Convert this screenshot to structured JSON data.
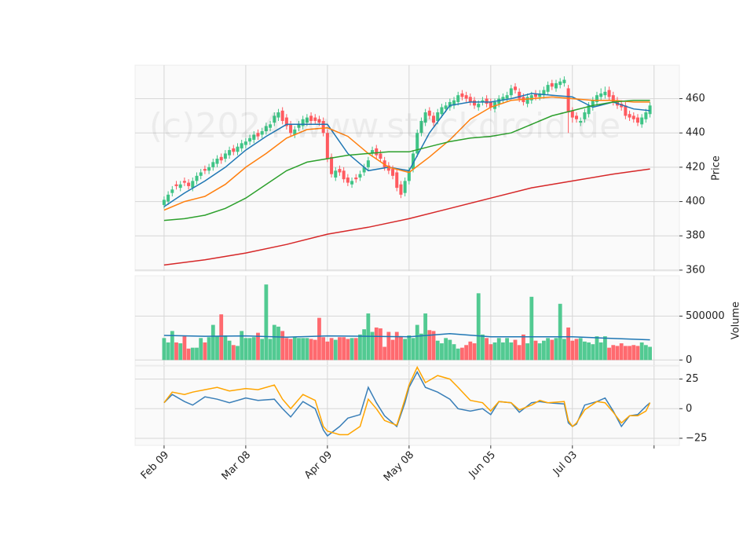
{
  "chart_data": [
    {
      "type": "candlestick",
      "ylabel": "Price",
      "watermark": "(c)2024 www.stockdroid.de",
      "grid": true,
      "ylim": [
        359.5,
        479.5
      ],
      "yticks": [
        360,
        380,
        400,
        420,
        440,
        460
      ],
      "up_color": "#3fc486",
      "down_color": "#ff5a5f",
      "open": [
        398,
        400,
        405,
        410,
        408,
        412,
        411,
        408,
        412,
        415,
        419,
        418,
        420,
        422,
        426,
        425,
        427,
        431,
        429,
        431,
        433,
        435,
        436,
        440,
        439,
        441,
        443,
        446,
        449,
        453,
        449,
        445,
        439,
        443,
        444,
        446,
        450,
        449,
        448,
        447,
        440,
        426,
        414,
        419,
        418,
        414,
        410,
        414,
        414,
        417,
        420,
        428,
        431,
        428,
        424,
        421,
        419,
        417,
        410,
        405,
        412,
        419,
        428,
        440,
        446,
        453,
        450,
        447,
        451,
        454,
        455,
        456,
        458,
        463,
        462,
        461,
        459,
        455,
        458,
        460,
        458,
        454,
        457,
        459,
        460,
        462,
        467,
        464,
        461,
        457,
        459,
        463,
        461,
        462,
        464,
        469,
        466,
        468,
        469,
        466,
        453,
        450,
        446,
        448,
        451,
        455,
        458,
        461,
        462,
        465,
        462,
        459,
        457,
        456,
        451,
        450,
        449,
        445,
        448,
        451
      ],
      "high": [
        403,
        406,
        409,
        412,
        412,
        414,
        413,
        414,
        417,
        419,
        421,
        422,
        425,
        427,
        428,
        430,
        432,
        433,
        434,
        436,
        437,
        439,
        441,
        442,
        443,
        446,
        447,
        452,
        454,
        455,
        451,
        447,
        444,
        447,
        450,
        451,
        452,
        451,
        450,
        449,
        442,
        428,
        420,
        421,
        420,
        416,
        414,
        416,
        418,
        422,
        426,
        432,
        433,
        430,
        426,
        423,
        421,
        419,
        412,
        414,
        420,
        430,
        442,
        449,
        454,
        455,
        452,
        454,
        457,
        458,
        460,
        461,
        464,
        465,
        464,
        463,
        461,
        459,
        461,
        462,
        460,
        460,
        462,
        463,
        464,
        468,
        469,
        466,
        463,
        463,
        464,
        465,
        465,
        467,
        470,
        471,
        471,
        472,
        473,
        468,
        455,
        452,
        449,
        454,
        458,
        461,
        464,
        466,
        467,
        467,
        464,
        461,
        459,
        458,
        453,
        452,
        451,
        451,
        454,
        458
      ],
      "low": [
        396,
        398,
        403,
        407,
        406,
        409,
        407,
        406,
        410,
        413,
        416,
        416,
        418,
        420,
        422,
        423,
        425,
        427,
        427,
        429,
        431,
        433,
        434,
        436,
        437,
        439,
        441,
        444,
        447,
        445,
        442,
        438,
        437,
        441,
        442,
        444,
        445,
        445,
        444,
        438,
        423,
        414,
        412,
        415,
        411,
        409,
        408,
        411,
        412,
        415,
        418,
        426,
        425,
        423,
        418,
        416,
        413,
        406,
        402,
        403,
        410,
        417,
        426,
        438,
        444,
        448,
        444,
        445,
        449,
        452,
        453,
        454,
        456,
        459,
        458,
        456,
        454,
        453,
        456,
        455,
        453,
        452,
        455,
        457,
        458,
        460,
        463,
        458,
        456,
        455,
        457,
        459,
        459,
        460,
        462,
        465,
        464,
        466,
        467,
        440,
        446,
        446,
        444,
        446,
        449,
        453,
        456,
        459,
        460,
        459,
        456,
        454,
        453,
        448,
        447,
        446,
        444,
        443,
        446,
        449
      ],
      "close": [
        401,
        404,
        407,
        409,
        410,
        411,
        409,
        412,
        415,
        417,
        418,
        420,
        423,
        425,
        424,
        428,
        430,
        429,
        432,
        434,
        435,
        437,
        439,
        438,
        441,
        444,
        445,
        450,
        452,
        447,
        444,
        440,
        442,
        445,
        448,
        449,
        447,
        447,
        446,
        440,
        425,
        416,
        418,
        417,
        413,
        411,
        412,
        413,
        416,
        420,
        424,
        430,
        427,
        425,
        420,
        418,
        415,
        408,
        404,
        412,
        418,
        428,
        440,
        447,
        452,
        450,
        446,
        452,
        455,
        456,
        458,
        459,
        462,
        461,
        460,
        458,
        456,
        457,
        459,
        457,
        455,
        458,
        460,
        461,
        462,
        466,
        465,
        460,
        458,
        461,
        462,
        461,
        463,
        465,
        468,
        467,
        469,
        470,
        471,
        452,
        449,
        448,
        447,
        452,
        456,
        459,
        462,
        463,
        464,
        461,
        458,
        456,
        455,
        450,
        449,
        448,
        446,
        449,
        452,
        456
      ],
      "series": [
        {
          "color": "#1f77b4",
          "x": [
            0,
            5,
            10,
            15,
            20,
            25,
            30,
            35,
            40,
            45,
            50,
            55,
            60,
            65,
            70,
            75,
            80,
            85,
            90,
            95,
            100,
            105,
            110,
            115,
            119
          ],
          "values": [
            397,
            405,
            412,
            420,
            430,
            438,
            445,
            445,
            445,
            428,
            418,
            420,
            418,
            440,
            456,
            458,
            458,
            460,
            463,
            462,
            461,
            455,
            458,
            454,
            453
          ]
        },
        {
          "color": "#ff7f0e",
          "x": [
            0,
            5,
            10,
            15,
            20,
            25,
            30,
            35,
            40,
            45,
            50,
            55,
            60,
            65,
            70,
            75,
            80,
            85,
            90,
            95,
            100,
            105,
            110,
            115,
            119
          ],
          "values": [
            395,
            400,
            403,
            410,
            420,
            428,
            437,
            442,
            443,
            438,
            428,
            420,
            417,
            426,
            436,
            448,
            455,
            459,
            460,
            461,
            460,
            459,
            459,
            458,
            458
          ]
        },
        {
          "color": "#2ca02c",
          "x": [
            0,
            5,
            10,
            15,
            20,
            25,
            30,
            35,
            40,
            45,
            50,
            55,
            60,
            65,
            70,
            75,
            80,
            85,
            90,
            95,
            100,
            105,
            110,
            115,
            119
          ],
          "values": [
            389,
            390,
            392,
            396,
            402,
            410,
            418,
            423,
            425,
            427,
            428,
            429,
            429,
            432,
            435,
            437,
            438,
            440,
            445,
            450,
            453,
            456,
            458,
            459,
            459
          ]
        },
        {
          "color": "#d62728",
          "x": [
            0,
            10,
            20,
            30,
            40,
            50,
            60,
            70,
            80,
            90,
            100,
            110,
            119
          ],
          "values": [
            363,
            366,
            370,
            375,
            381,
            385,
            390,
            396,
            402,
            408,
            412,
            416,
            419
          ]
        }
      ]
    },
    {
      "type": "bar",
      "ylabel": "Volume",
      "grid": true,
      "ylim": [
        -60000,
        960000
      ],
      "yticks": [
        0,
        500000
      ],
      "values": [
        250000,
        200000,
        330000,
        200000,
        190000,
        270000,
        130000,
        140000,
        140000,
        250000,
        200000,
        260000,
        400000,
        270000,
        520000,
        280000,
        220000,
        170000,
        160000,
        330000,
        250000,
        250000,
        260000,
        310000,
        240000,
        860000,
        240000,
        400000,
        380000,
        330000,
        250000,
        240000,
        260000,
        250000,
        250000,
        250000,
        240000,
        230000,
        480000,
        260000,
        210000,
        250000,
        230000,
        260000,
        260000,
        240000,
        250000,
        250000,
        290000,
        350000,
        530000,
        320000,
        370000,
        360000,
        150000,
        320000,
        230000,
        320000,
        270000,
        240000,
        280000,
        250000,
        400000,
        300000,
        530000,
        340000,
        330000,
        220000,
        190000,
        250000,
        230000,
        180000,
        130000,
        140000,
        170000,
        210000,
        190000,
        760000,
        290000,
        250000,
        180000,
        200000,
        250000,
        200000,
        250000,
        200000,
        230000,
        170000,
        290000,
        190000,
        720000,
        220000,
        190000,
        220000,
        250000,
        230000,
        250000,
        640000,
        240000,
        370000,
        220000,
        240000,
        250000,
        210000,
        200000,
        180000,
        270000,
        200000,
        270000,
        140000,
        170000,
        160000,
        190000,
        160000,
        160000,
        170000,
        160000,
        200000,
        170000,
        150000
      ],
      "series": [
        {
          "color": "#1f77b4",
          "x": [
            0,
            10,
            20,
            30,
            40,
            50,
            60,
            70,
            80,
            90,
            100,
            110,
            119
          ],
          "values": [
            280000,
            270000,
            275000,
            260000,
            275000,
            270000,
            265000,
            300000,
            265000,
            265000,
            265000,
            245000,
            230000
          ]
        }
      ]
    },
    {
      "type": "line",
      "grid": true,
      "ylim": [
        -31,
        36
      ],
      "yticks": [
        {
          "value": -25,
          "label": "−25"
        },
        0,
        25
      ],
      "xlim": [
        -7.1,
        126.2
      ],
      "xticks": [
        {
          "value": 0,
          "label": "Feb 09"
        },
        {
          "value": 20,
          "label": "Mar 08"
        },
        {
          "value": 40,
          "label": "Apr 09"
        },
        {
          "value": 60,
          "label": "May 08"
        },
        {
          "value": 80,
          "label": "Jun 05"
        },
        {
          "value": 100,
          "label": "Jul 03"
        },
        {
          "value": 120,
          "label": null
        }
      ],
      "x": [
        0,
        2,
        5,
        7,
        10,
        13,
        16,
        20,
        23,
        27,
        29,
        31,
        34,
        37,
        39,
        40,
        43,
        45,
        48,
        50,
        52,
        54,
        57,
        59,
        60,
        62,
        64,
        67,
        70,
        72,
        75,
        78,
        80,
        82,
        85,
        87,
        90,
        92,
        94,
        98,
        99,
        100,
        101,
        103,
        106,
        108,
        110,
        112,
        114,
        116,
        118,
        119
      ],
      "series": [
        {
          "color": "#3a7fb8",
          "values": [
            5,
            12,
            6,
            3,
            10,
            8,
            5,
            9,
            7,
            8,
            0,
            -7,
            6,
            0,
            -18,
            -23,
            -15,
            -8,
            -5,
            18,
            5,
            -6,
            -15,
            5,
            18,
            31,
            18,
            14,
            8,
            0,
            -2,
            0,
            -5,
            6,
            5,
            -3,
            5,
            6,
            5,
            4,
            -12,
            -15,
            -13,
            3,
            6,
            9,
            -2,
            -15,
            -6,
            -5,
            2,
            5
          ]
        },
        {
          "color": "#ffa500",
          "values": [
            5,
            14,
            12,
            14,
            16,
            18,
            15,
            17,
            16,
            20,
            8,
            0,
            12,
            7,
            -15,
            -19,
            -22,
            -22,
            -15,
            8,
            0,
            -10,
            -14,
            8,
            20,
            35,
            22,
            28,
            25,
            18,
            7,
            5,
            -2,
            6,
            5,
            -1,
            3,
            7,
            5,
            6,
            -10,
            -15,
            -12,
            -1,
            6,
            5,
            -3,
            -12,
            -6,
            -6,
            -2,
            5
          ]
        }
      ]
    }
  ]
}
